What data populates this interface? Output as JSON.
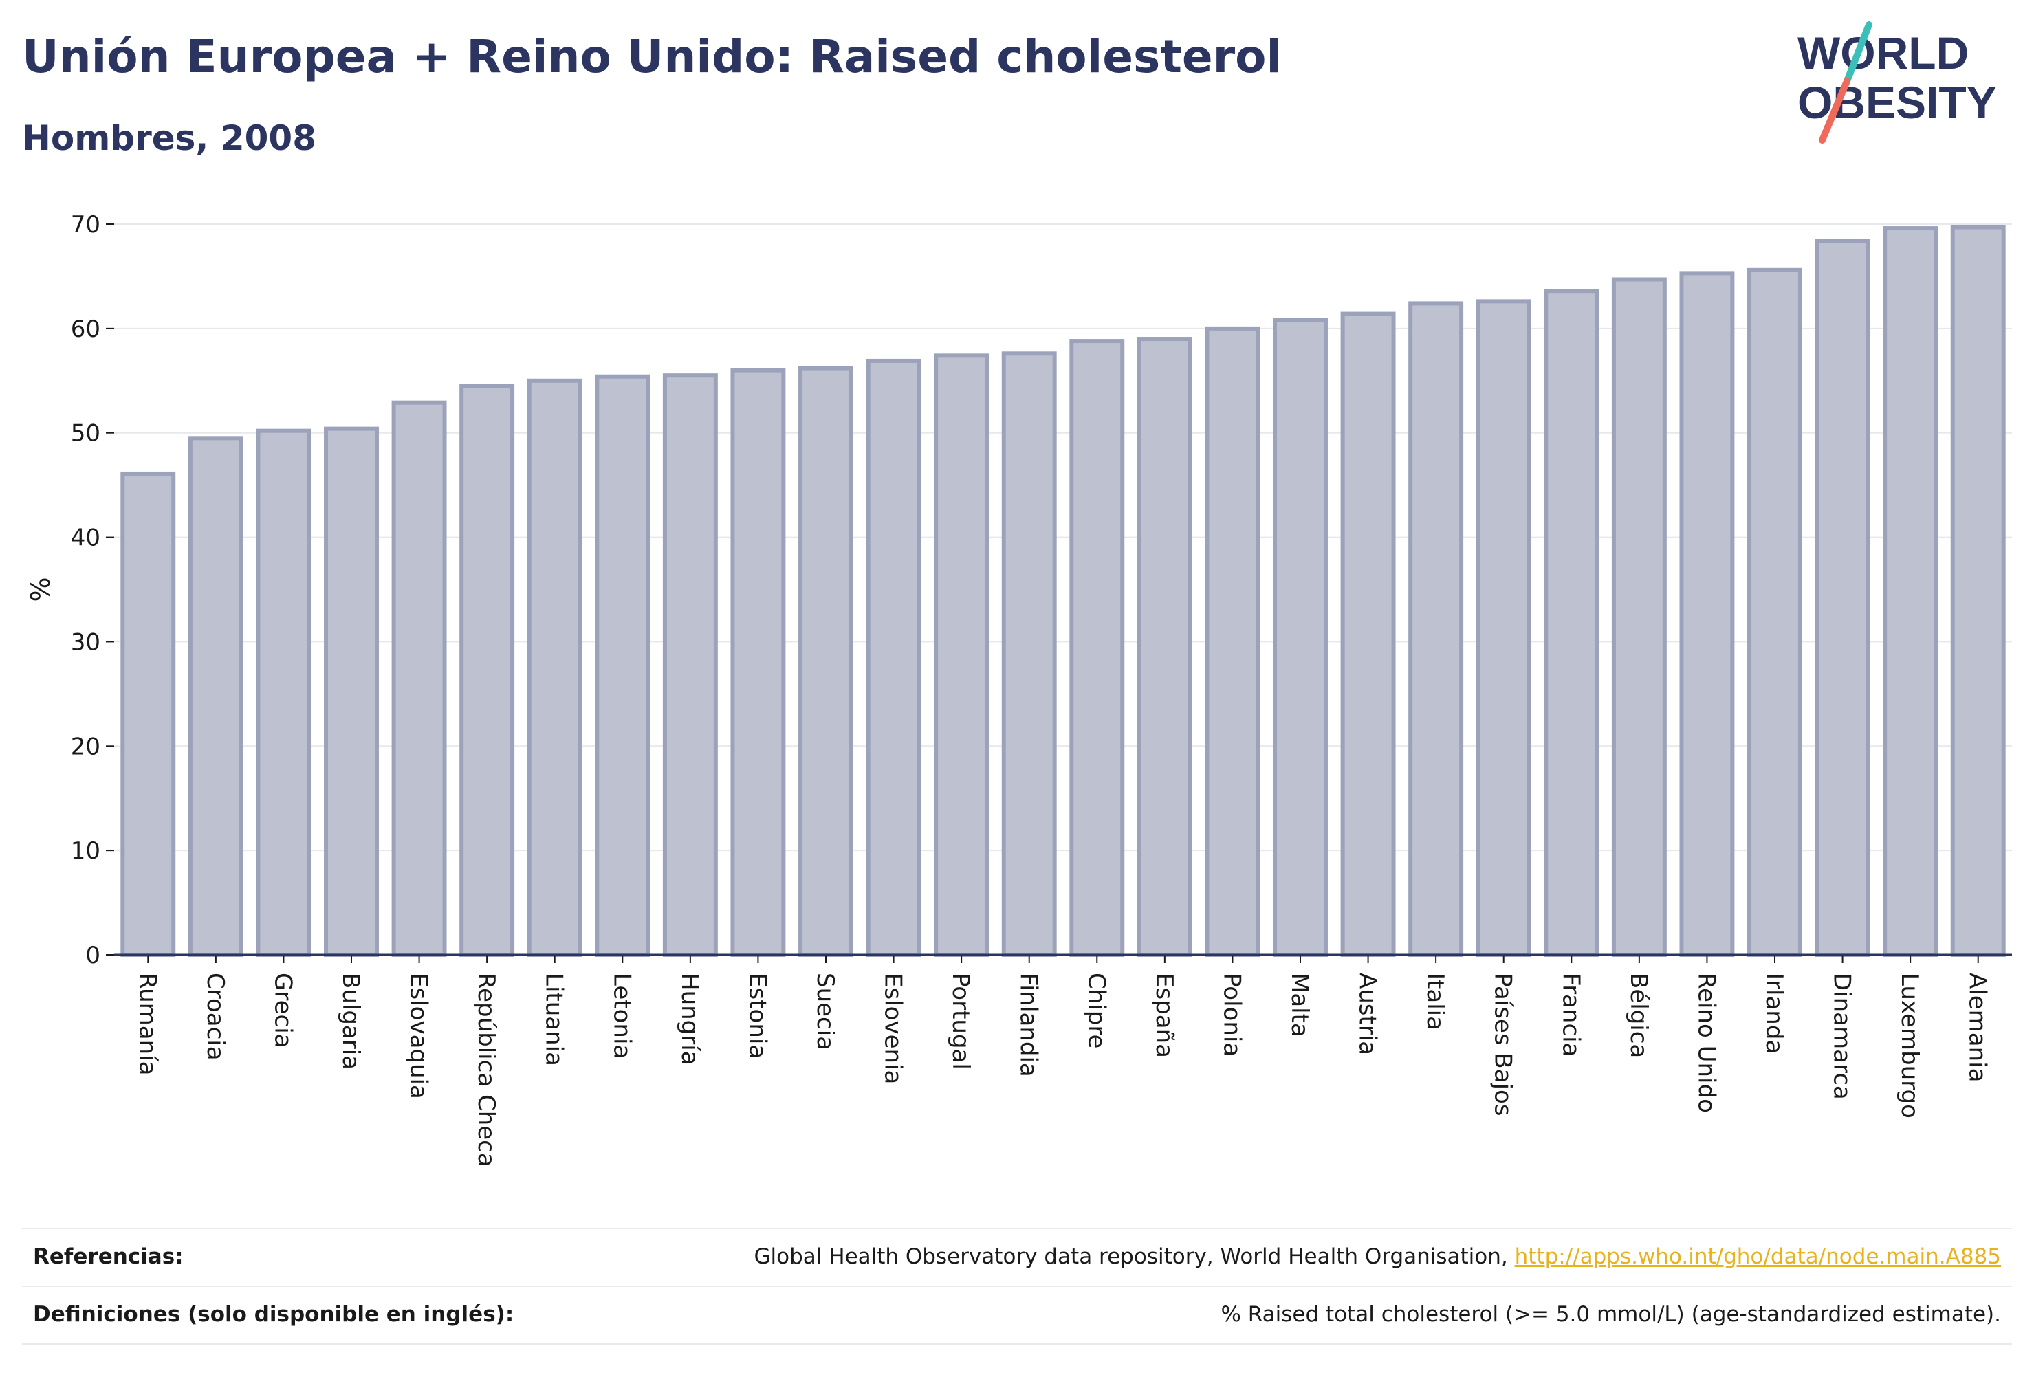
{
  "header": {
    "title": "Unión Europea + Reino Unido: Raised cholesterol",
    "subtitle": "Hombres, 2008"
  },
  "logo": {
    "line1": "WORLD",
    "line2": "OBESITY",
    "colors": {
      "text": "#2c3560",
      "teal": "#3bbfb9",
      "coral": "#ef6a5a"
    }
  },
  "chart_data": {
    "type": "bar",
    "ylabel": "%",
    "ylim": [
      0,
      70
    ],
    "yticks": [
      0,
      10,
      20,
      30,
      40,
      50,
      60,
      70
    ],
    "grid": true,
    "categories": [
      "Rumanía",
      "Croacia",
      "Grecia",
      "Bulgaria",
      "Eslovaquia",
      "República Checa",
      "Lituania",
      "Letonia",
      "Hungría",
      "Estonia",
      "Suecia",
      "Eslovenia",
      "Portugal",
      "Finlandia",
      "Chipre",
      "España",
      "Polonia",
      "Malta",
      "Austria",
      "Italia",
      "Países Bajos",
      "Francia",
      "Bélgica",
      "Reino Unido",
      "Irlanda",
      "Dinamarca",
      "Luxemburgo",
      "Alemania"
    ],
    "values": [
      46.1,
      49.5,
      50.2,
      50.4,
      52.9,
      54.5,
      55.0,
      55.4,
      55.5,
      56.0,
      56.2,
      56.9,
      57.4,
      57.6,
      58.8,
      59.0,
      60.0,
      60.8,
      61.4,
      62.4,
      62.6,
      63.6,
      64.7,
      65.3,
      65.6,
      68.4,
      69.6,
      69.7
    ],
    "colors": {
      "bar_fill": "#bec2d0",
      "bar_stroke": "#9ba2ba",
      "grid": "#e6e8ec",
      "axis": "#2c3560"
    }
  },
  "footer": {
    "references_label": "Referencias:",
    "references_text": "Global Health Observatory data repository, World Health Organisation, ",
    "references_link": "http://apps.who.int/gho/data/node.main.A885",
    "definitions_label": "Definiciones (solo disponible en inglés):",
    "definitions_text": "% Raised total cholesterol (>= 5.0 mmol/L) (age-standardized estimate)."
  }
}
